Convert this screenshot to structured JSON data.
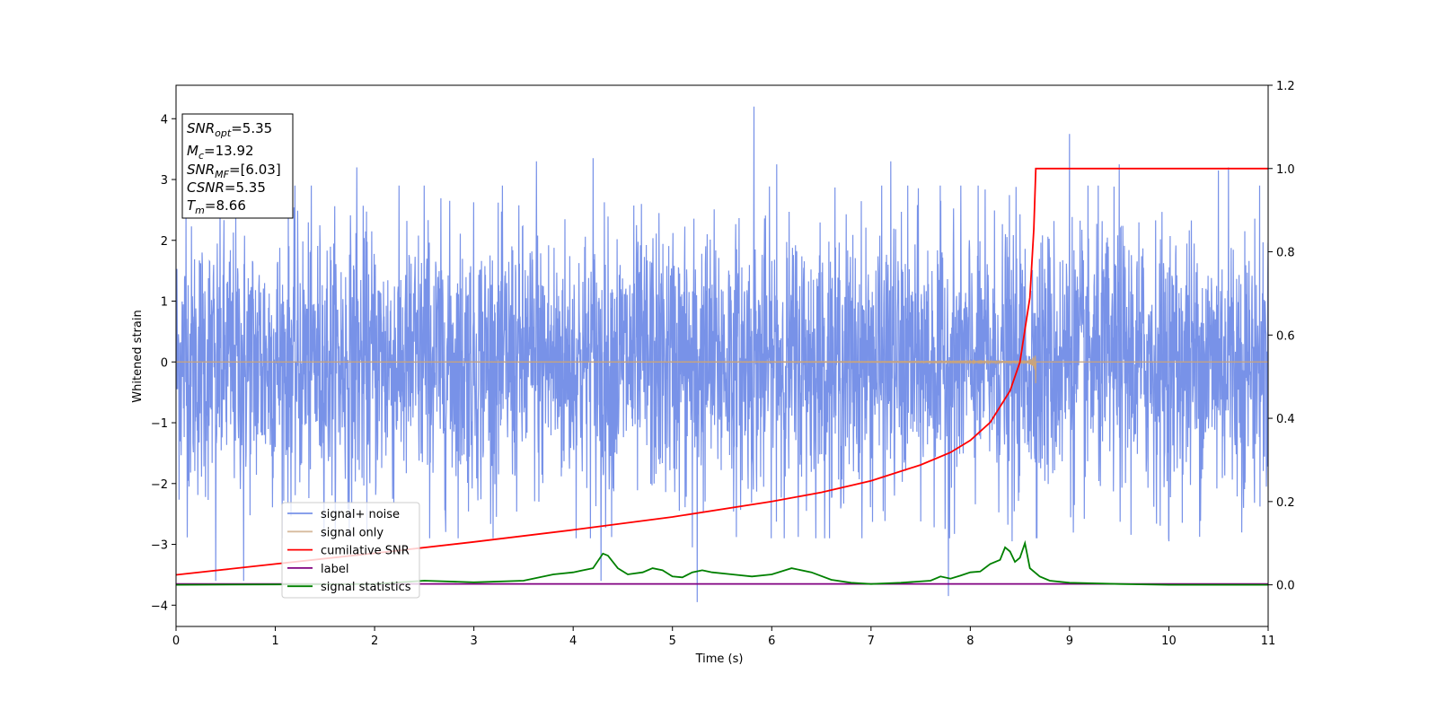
{
  "chart_data": {
    "type": "line",
    "xlabel": "Time (s)",
    "ylabel": "Whitened strain",
    "xlim": [
      0,
      11
    ],
    "ylim_left": [
      -4.35,
      4.55
    ],
    "ylim_right": [
      -0.1,
      1.2
    ],
    "x_ticks": [
      "0",
      "1",
      "2",
      "3",
      "4",
      "5",
      "6",
      "7",
      "8",
      "9",
      "10",
      "11"
    ],
    "y_left_ticks": [
      "−4",
      "−3",
      "−2",
      "−1",
      "0",
      "1",
      "2",
      "3",
      "4"
    ],
    "y_right_ticks": [
      "0.0",
      "0.2",
      "0.4",
      "0.6",
      "0.8",
      "1.0",
      "1.2"
    ],
    "grid": false,
    "legend_position": "lower-left",
    "annotation": {
      "lines": [
        {
          "sym": "SNR",
          "sub": "opt",
          "val": "=5.35"
        },
        {
          "sym": "M",
          "sub": "c",
          "val": "=13.92"
        },
        {
          "sym": "SNR",
          "sub": "MF",
          "val": "=[6.03]"
        },
        {
          "sym": "CSNR",
          "sub": "",
          "val": "=5.35"
        },
        {
          "sym": "T",
          "sub": "m",
          "val": "=8.66"
        }
      ]
    },
    "series": [
      {
        "name": "signal+ noise",
        "color": "#7892e8",
        "axis": "left",
        "noise_std": 1.1,
        "t_end": 11,
        "spikes": [
          {
            "x": 0.1,
            "y": 2.5
          },
          {
            "x": 0.4,
            "y": -3.6
          },
          {
            "x": 0.68,
            "y": -3.6
          },
          {
            "x": 1.82,
            "y": 3.2
          },
          {
            "x": 2.5,
            "y": 2.9
          },
          {
            "x": 3.63,
            "y": 3.3
          },
          {
            "x": 4.2,
            "y": 3.35
          },
          {
            "x": 4.28,
            "y": -3.6
          },
          {
            "x": 5.2,
            "y": -3.05
          },
          {
            "x": 5.25,
            "y": -3.95
          },
          {
            "x": 5.82,
            "y": 4.2
          },
          {
            "x": 6.05,
            "y": 3.25
          },
          {
            "x": 7.2,
            "y": 3.3
          },
          {
            "x": 7.78,
            "y": -3.85
          },
          {
            "x": 8.42,
            "y": -2.95
          },
          {
            "x": 9.0,
            "y": 3.75
          },
          {
            "x": 9.5,
            "y": 3.25
          },
          {
            "x": 10.5,
            "y": 3.15
          },
          {
            "x": 10.6,
            "y": 3.2
          },
          {
            "x": 10.0,
            "y": -2.95
          }
        ]
      },
      {
        "name": "signal only",
        "color": "#c9a47c",
        "axis": "left",
        "t_merger": 8.66,
        "peak_amplitude": 0.8
      },
      {
        "name": "cumilative SNR",
        "color": "#ff0000",
        "axis": "right",
        "x": [
          0,
          1,
          2,
          3,
          4,
          5,
          6,
          6.5,
          7,
          7.5,
          7.8,
          8,
          8.2,
          8.4,
          8.5,
          8.6,
          8.64,
          8.66,
          9,
          10,
          11
        ],
        "y": [
          0.024,
          0.05,
          0.076,
          0.103,
          0.132,
          0.163,
          0.2,
          0.222,
          0.25,
          0.288,
          0.318,
          0.347,
          0.39,
          0.466,
          0.535,
          0.69,
          0.855,
          1.0,
          1.0,
          1.0,
          1.0
        ]
      },
      {
        "name": "label",
        "color": "#800080",
        "axis": "left",
        "x": [
          0,
          11
        ],
        "y": [
          -3.65,
          -3.65
        ]
      },
      {
        "name": "signal statistics",
        "color": "#008000",
        "axis": "right",
        "x": [
          0,
          1,
          2,
          2.5,
          3.0,
          3.5,
          3.8,
          4.0,
          4.1,
          4.2,
          4.3,
          4.35,
          4.45,
          4.55,
          4.7,
          4.8,
          4.9,
          5.0,
          5.1,
          5.2,
          5.3,
          5.4,
          5.6,
          5.8,
          6.0,
          6.2,
          6.4,
          6.6,
          6.8,
          7.0,
          7.3,
          7.6,
          7.7,
          7.8,
          7.9,
          8.0,
          8.1,
          8.2,
          8.3,
          8.35,
          8.4,
          8.45,
          8.5,
          8.55,
          8.6,
          8.7,
          8.8,
          9.0,
          9.5,
          10,
          11
        ],
        "y": [
          0.0,
          0.001,
          0.002,
          0.01,
          0.006,
          0.01,
          0.025,
          0.03,
          0.035,
          0.04,
          0.075,
          0.07,
          0.04,
          0.025,
          0.03,
          0.04,
          0.035,
          0.02,
          0.018,
          0.03,
          0.035,
          0.03,
          0.025,
          0.02,
          0.025,
          0.04,
          0.03,
          0.012,
          0.005,
          0.002,
          0.005,
          0.01,
          0.02,
          0.015,
          0.022,
          0.03,
          0.032,
          0.05,
          0.06,
          0.09,
          0.08,
          0.055,
          0.065,
          0.1,
          0.04,
          0.02,
          0.01,
          0.005,
          0.002,
          0.0,
          0.0
        ]
      }
    ]
  }
}
